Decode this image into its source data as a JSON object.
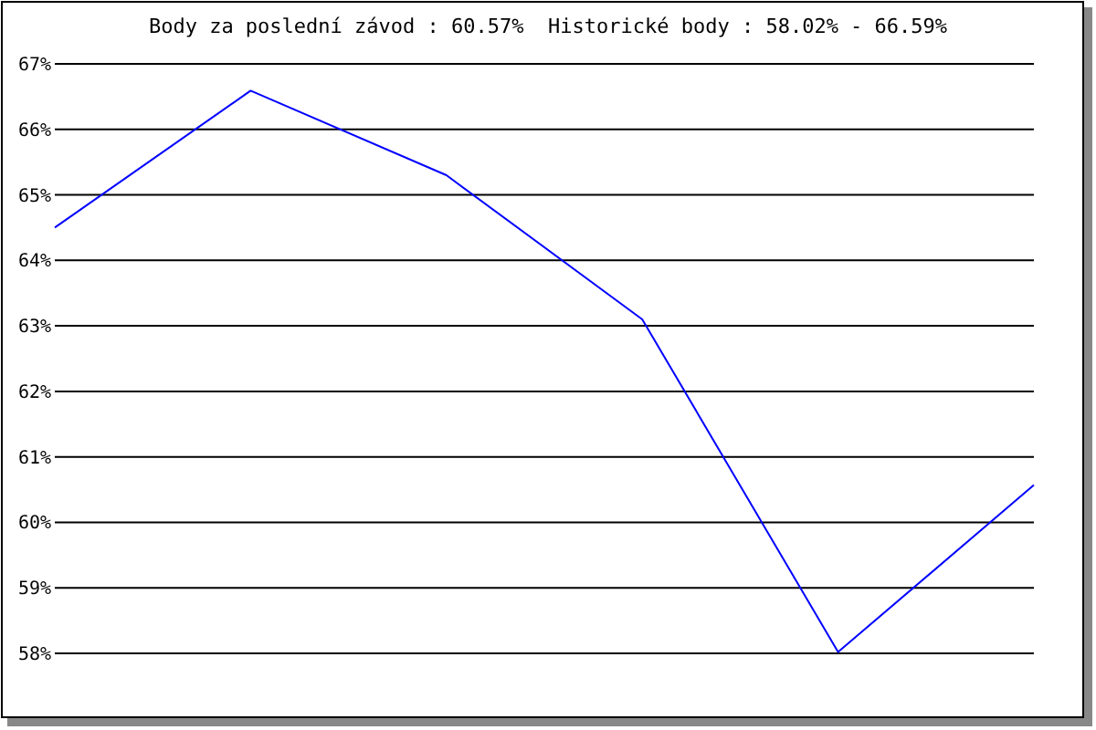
{
  "chart_data": {
    "type": "line",
    "title": "Body za poslední závod : 60.57%  Historické body : 58.02% - 66.59%",
    "categories": [
      null,
      null,
      null,
      null,
      null,
      null
    ],
    "series": [
      {
        "color": "#0000ff",
        "values": [
          64.5,
          66.59,
          65.3,
          63.1,
          58.02,
          60.57
        ]
      }
    ],
    "ylim": [
      58,
      67
    ],
    "yticks": [
      {
        "value": 58,
        "label": "58%"
      },
      {
        "value": 59,
        "label": "59%"
      },
      {
        "value": 60,
        "label": "60%"
      },
      {
        "value": 61,
        "label": "61%"
      },
      {
        "value": 62,
        "label": "62%"
      },
      {
        "value": 63,
        "label": "63%"
      },
      {
        "value": 64,
        "label": "64%"
      },
      {
        "value": 65,
        "label": "65%"
      },
      {
        "value": 66,
        "label": "66%"
      },
      {
        "value": 67,
        "label": "67%"
      }
    ],
    "grid": "y",
    "marker": "none",
    "line_style": "solid"
  }
}
